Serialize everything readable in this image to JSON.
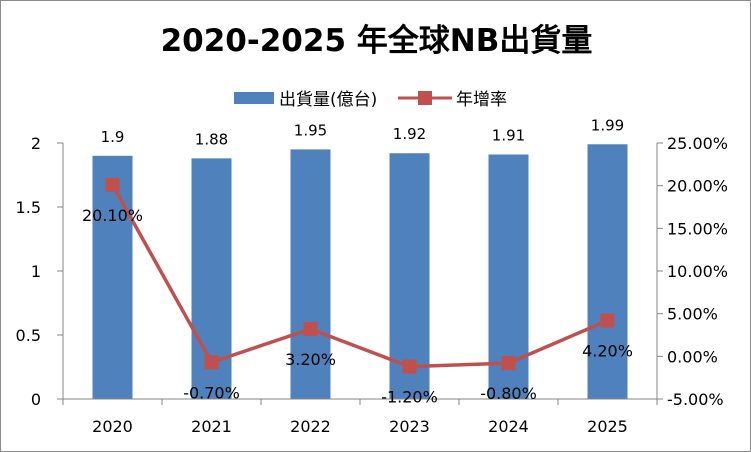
{
  "chart_data": {
    "type": "bar+line",
    "title": "2020-2025 年全球NB出貨量",
    "categories": [
      "2020",
      "2021",
      "2022",
      "2023",
      "2024",
      "2025"
    ],
    "series": [
      {
        "name": "出貨量(億台)",
        "kind": "bar",
        "axis": "left",
        "values": [
          1.9,
          1.88,
          1.95,
          1.92,
          1.91,
          1.99
        ],
        "labels": [
          "1.9",
          "1.88",
          "1.95",
          "1.92",
          "1.91",
          "1.99"
        ],
        "color": "#4F81BD"
      },
      {
        "name": "年增率",
        "kind": "line",
        "axis": "right",
        "values": [
          20.1,
          -0.7,
          3.2,
          -1.2,
          -0.8,
          4.2
        ],
        "labels": [
          "20.10%",
          "-0.70%",
          "3.20%",
          "-1.20%",
          "-0.80%",
          "4.20%"
        ],
        "color": "#C0504D"
      }
    ],
    "y_left": {
      "range": [
        0,
        2
      ],
      "ticks": [
        "0",
        "0.5",
        "1",
        "1.5",
        "2"
      ]
    },
    "y_right": {
      "range": [
        -5,
        25
      ],
      "ticks": [
        "-5.00%",
        "0.00%",
        "5.00%",
        "10.00%",
        "15.00%",
        "20.00%",
        "25.00%"
      ]
    },
    "grid": false,
    "legend_position": "top"
  }
}
